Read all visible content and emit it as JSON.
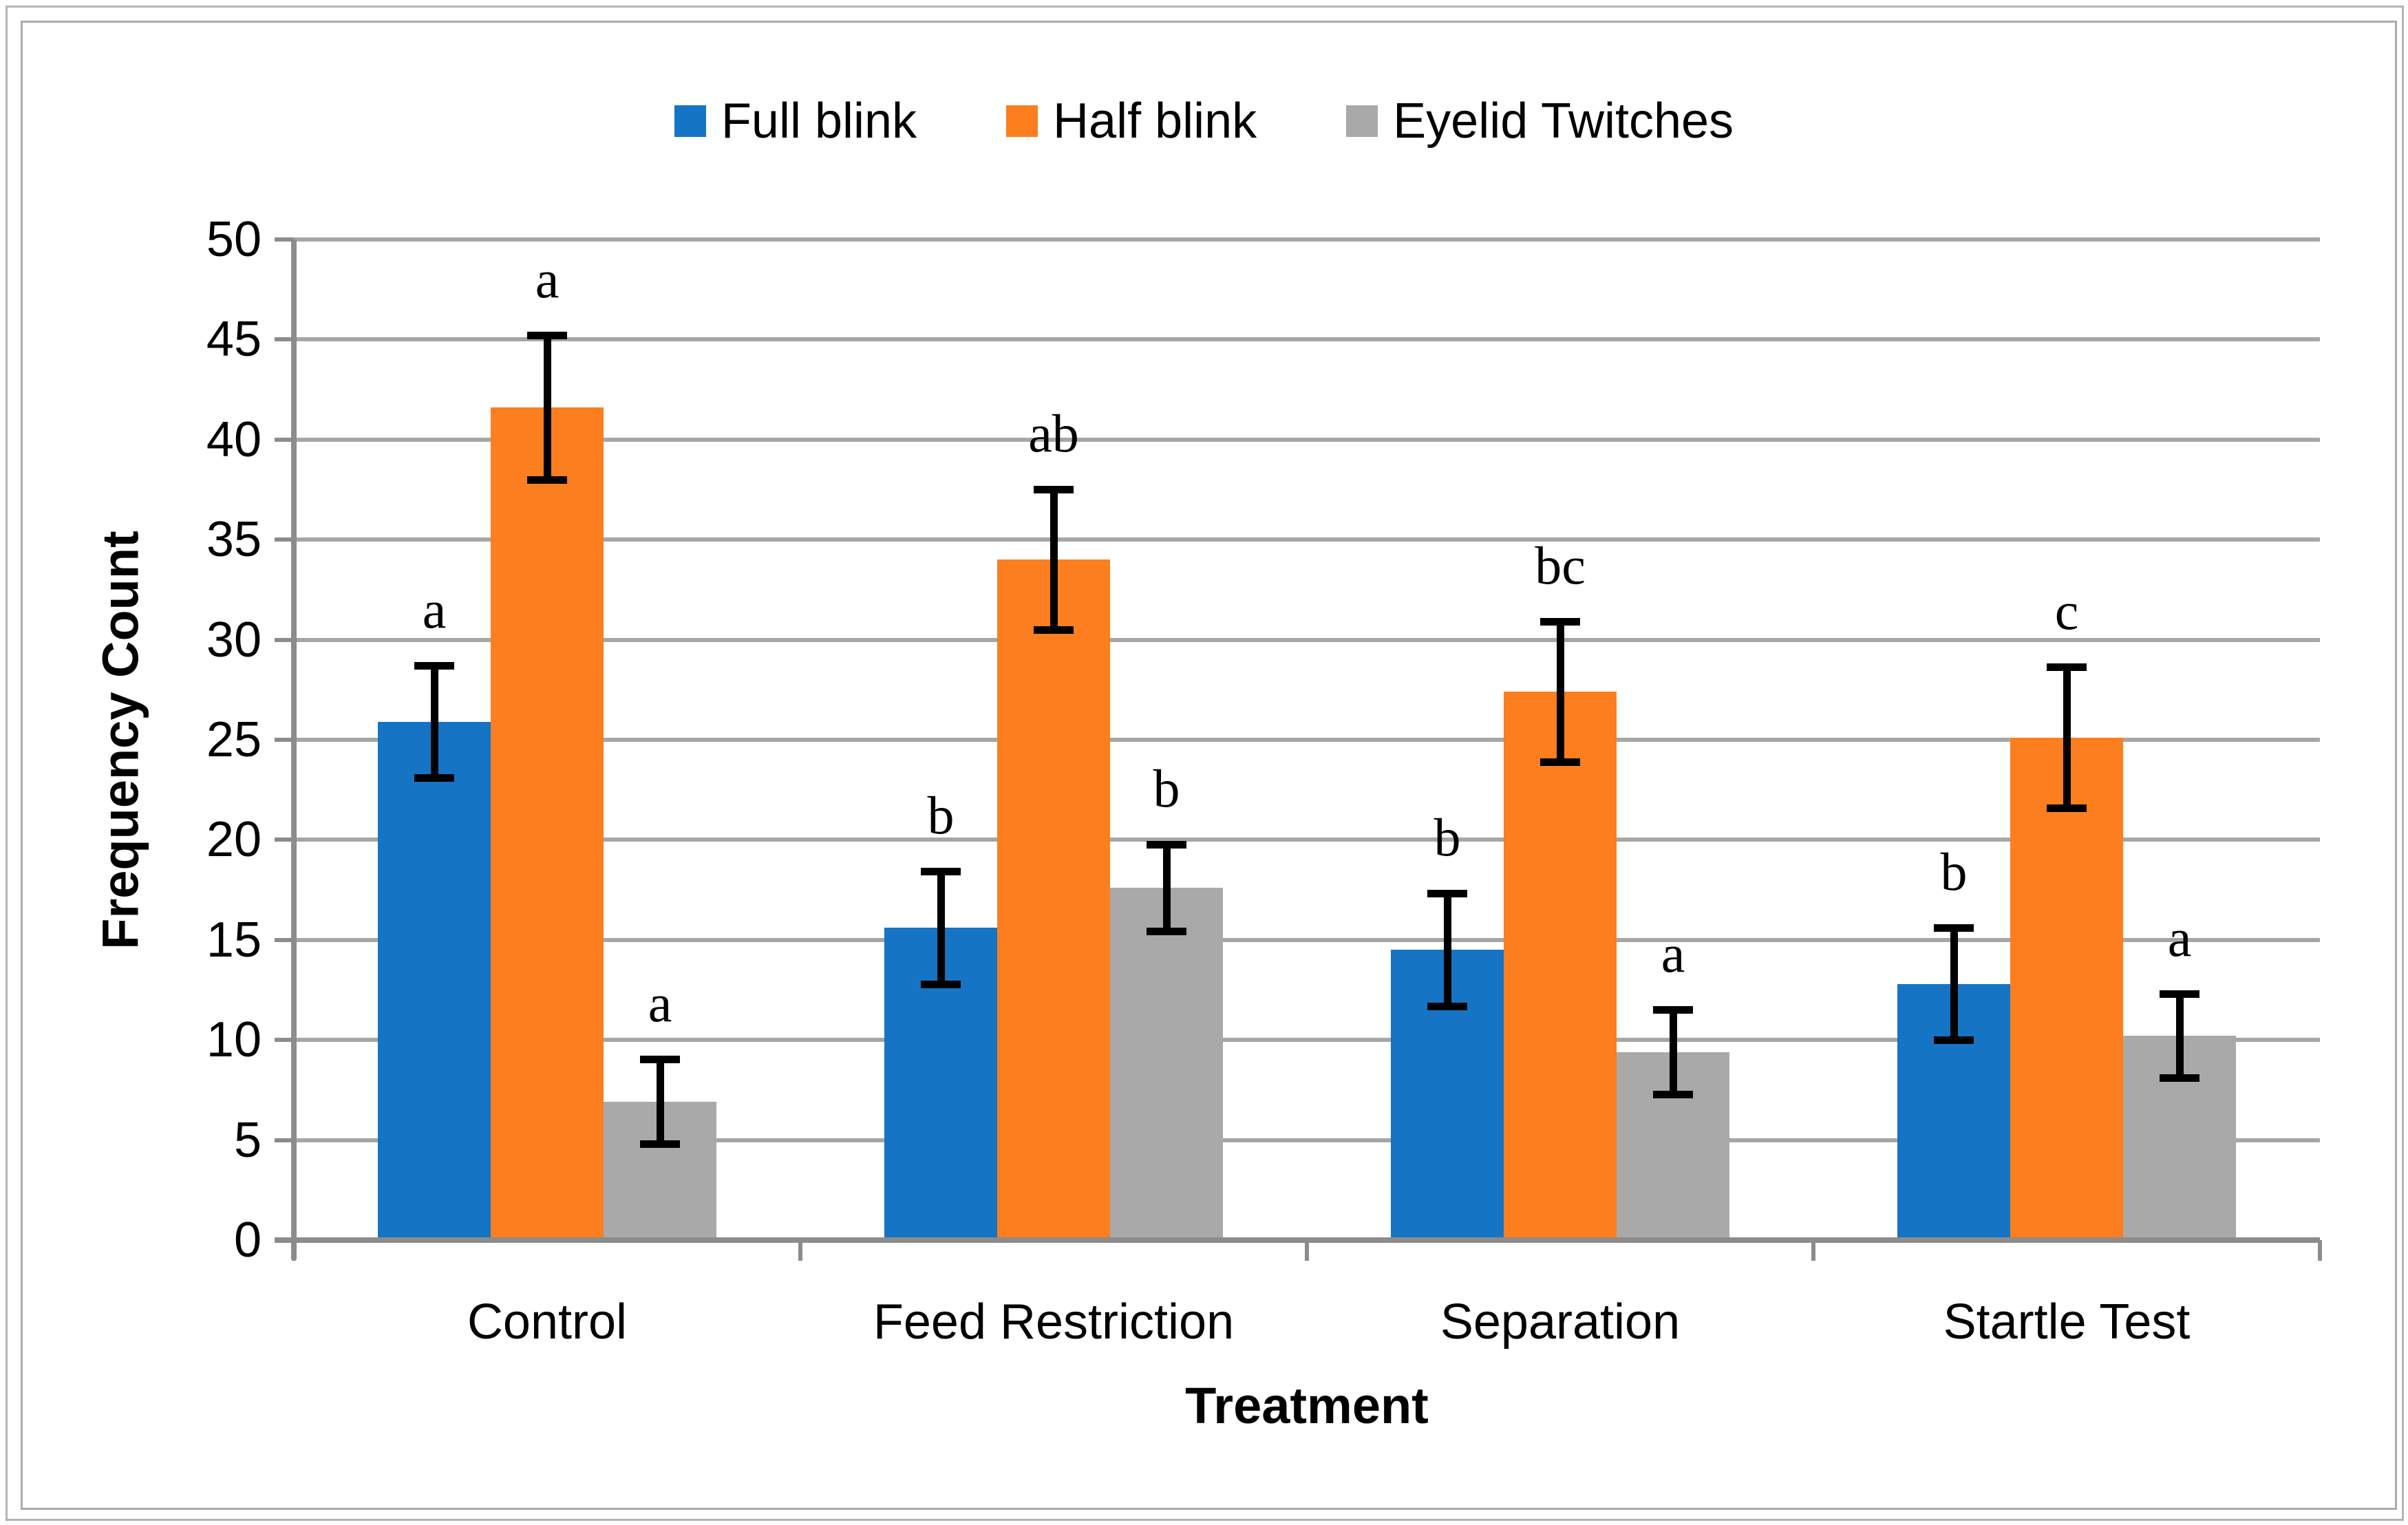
{
  "figure": {
    "kind": "excel-style grouped bar chart",
    "background": "#ffffff",
    "border_color": "#ababab"
  },
  "legend": {
    "position": "top-center",
    "items": [
      {
        "label": "Full blink",
        "color": "#1674C4"
      },
      {
        "label": "Half blink",
        "color": "#FD7E1E"
      },
      {
        "label": "Eyelid Twitches",
        "color": "#A9A9A9"
      }
    ]
  },
  "y_axis": {
    "title": "Frequency Count",
    "min": 0,
    "max": 50,
    "tick_step": 5,
    "tick_labels": [
      "0",
      "5",
      "10",
      "15",
      "20",
      "25",
      "30",
      "35",
      "40",
      "45",
      "50"
    ]
  },
  "x_axis": {
    "title": "Treatment",
    "categories": [
      "Control",
      "Feed Restriction",
      "Separation",
      "Startle Test"
    ]
  },
  "chart_data": {
    "type": "bar",
    "title": "",
    "xlabel": "Treatment",
    "ylabel": "Frequency Count",
    "ylim": [
      0,
      50
    ],
    "grid": true,
    "legend_position": "top",
    "categories": [
      "Control",
      "Feed Restriction",
      "Separation",
      "Startle Test"
    ],
    "series": [
      {
        "name": "Full blink",
        "color": "#1674C4",
        "values": [
          25.9,
          15.6,
          14.5,
          12.8
        ],
        "errors": [
          3.0,
          3.0,
          3.0,
          3.0
        ],
        "letters": [
          "a",
          "b",
          "b",
          "b"
        ]
      },
      {
        "name": "Half blink",
        "color": "#FD7E1E",
        "values": [
          41.6,
          34.0,
          27.4,
          25.1
        ],
        "errors": [
          3.8,
          3.7,
          3.7,
          3.7
        ],
        "letters": [
          "a",
          "ab",
          "bc",
          "c"
        ]
      },
      {
        "name": "Eyelid Twitches",
        "color": "#A9A9A9",
        "values": [
          6.9,
          17.6,
          9.4,
          10.2
        ],
        "errors": [
          2.3,
          2.35,
          2.3,
          2.3
        ],
        "letters": [
          "a",
          "b",
          "a",
          "a"
        ]
      }
    ]
  }
}
